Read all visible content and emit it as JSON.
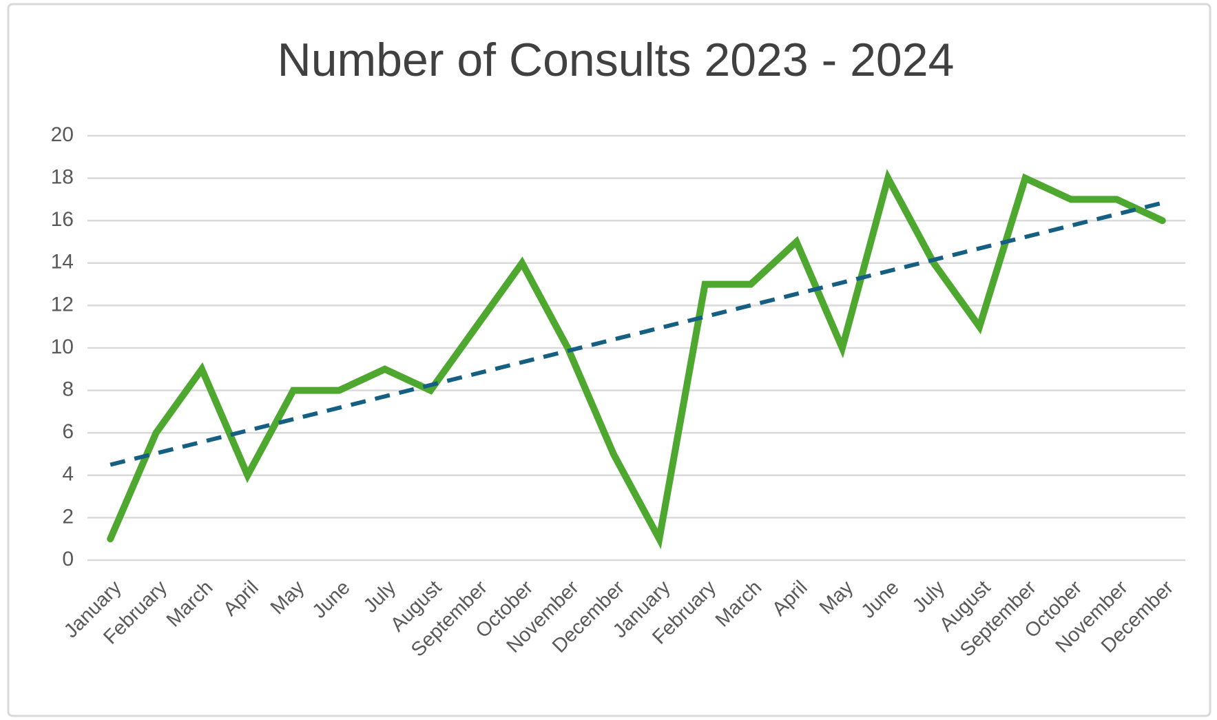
{
  "chart_data": {
    "type": "line",
    "title": "Number of Consults 2023 - 2024",
    "categories": [
      "January",
      "February",
      "March",
      "April",
      "May",
      "June",
      "July",
      "August",
      "September",
      "October",
      "November",
      "December",
      "January",
      "February",
      "March",
      "April",
      "May",
      "June",
      "July",
      "August",
      "September",
      "October",
      "November",
      "December"
    ],
    "series": [
      {
        "name": "Consults",
        "color": "#4ea72e",
        "values": [
          1,
          6,
          9,
          4,
          8,
          8,
          9,
          8,
          11,
          14,
          10,
          5,
          1,
          13,
          13,
          15,
          10,
          18,
          14,
          11,
          18,
          17,
          17,
          16
        ]
      }
    ],
    "ylim": [
      0,
      20
    ],
    "yticks": [
      0,
      2,
      4,
      6,
      8,
      10,
      12,
      14,
      16,
      18,
      20
    ],
    "grid": true,
    "legend": false,
    "trendline": {
      "type": "linear",
      "color": "#156082",
      "dashed": true
    }
  }
}
